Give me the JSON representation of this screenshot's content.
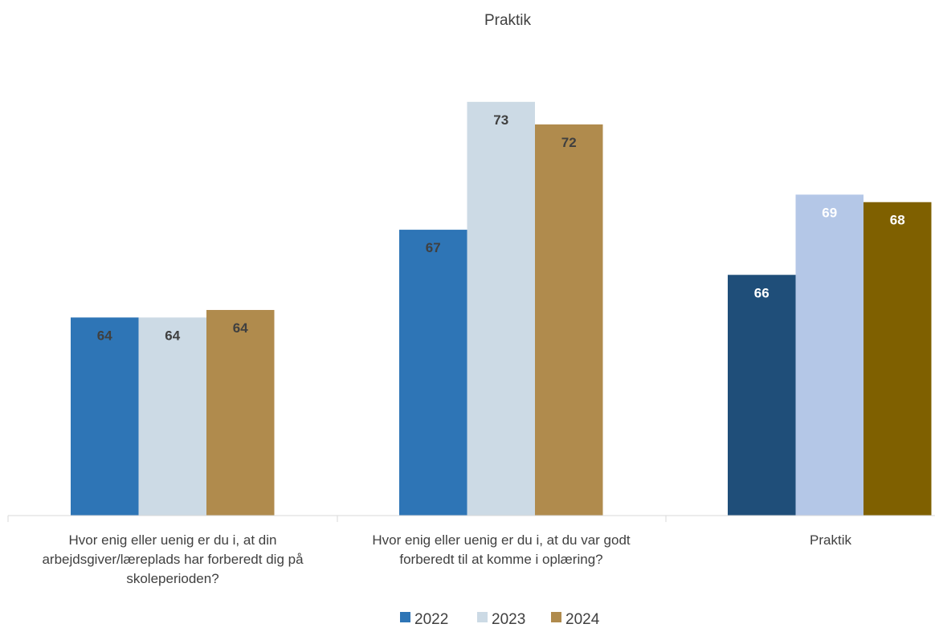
{
  "chart_data": {
    "type": "bar",
    "title": "Praktik",
    "categories": [
      [
        "Hvor enig eller uenig er du i, at din",
        "arbejdsgiver/læreplads har forberedt dig på",
        "skoleperioden?"
      ],
      [
        "Hvor enig eller uenig er du i, at du var godt",
        "forberedt til at komme i oplæring?"
      ],
      [
        "Praktik"
      ]
    ],
    "series": [
      {
        "name": "2022",
        "values": [
          64,
          67,
          66
        ],
        "color": "#2e75b6"
      },
      {
        "name": "2023",
        "values": [
          64,
          73,
          69
        ],
        "color": "#ccdae5"
      },
      {
        "name": "2024",
        "values": [
          64,
          72,
          68
        ],
        "color": "#b08b4d"
      }
    ],
    "bar_colors": [
      [
        "#2e75b6",
        "#ccdae5",
        "#b08b4d"
      ],
      [
        "#2e75b6",
        "#ccdae5",
        "#b08b4d"
      ],
      [
        "#1f4e79",
        "#b4c7e7",
        "#7f6000"
      ]
    ],
    "bar_label_colors": [
      [
        "#404040",
        "#404040",
        "#404040"
      ],
      [
        "#404040",
        "#404040",
        "#404040"
      ],
      [
        "#ffffff",
        "#ffffff",
        "#ffffff"
      ]
    ],
    "display_values": [
      [
        63.9,
        63.9,
        64.2
      ],
      [
        67.4,
        72.5,
        71.6
      ],
      [
        65.6,
        68.8,
        68.5
      ]
    ],
    "ylim": [
      56,
      74
    ],
    "legend_position": "bottom",
    "grid": false
  }
}
